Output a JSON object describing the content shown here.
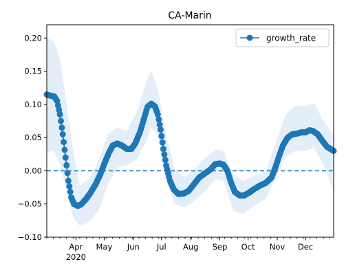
{
  "chart_data": {
    "type": "line",
    "title": "CA-Marin",
    "xlabel": "",
    "ylabel": "",
    "x_start": "2020-03-01",
    "x_end": "2020-12-31",
    "ylim": [
      -0.1,
      0.22
    ],
    "yticks": [
      -0.1,
      -0.05,
      0.0,
      0.05,
      0.1,
      0.15,
      0.2
    ],
    "ytick_labels": [
      "−0.10",
      "−0.05",
      "0.00",
      "0.05",
      "0.10",
      "0.15",
      "0.20"
    ],
    "xticks": [
      {
        "date": "2020-04-01",
        "label": "Apr",
        "sublabel": "2020"
      },
      {
        "date": "2020-05-01",
        "label": "May",
        "sublabel": ""
      },
      {
        "date": "2020-06-01",
        "label": "Jun",
        "sublabel": ""
      },
      {
        "date": "2020-07-01",
        "label": "Jul",
        "sublabel": ""
      },
      {
        "date": "2020-08-01",
        "label": "Aug",
        "sublabel": ""
      },
      {
        "date": "2020-09-01",
        "label": "Sep",
        "sublabel": ""
      },
      {
        "date": "2020-10-01",
        "label": "Oct",
        "sublabel": ""
      },
      {
        "date": "2020-11-01",
        "label": "Nov",
        "sublabel": ""
      },
      {
        "date": "2020-12-01",
        "label": "Dec",
        "sublabel": ""
      }
    ],
    "legend": {
      "position": "top-right",
      "entries": [
        "growth_rate"
      ]
    },
    "grid": false,
    "reference_line": {
      "y": 0.0,
      "style": "dashed"
    },
    "colors": {
      "series": "#1f77b4",
      "band": "#dae8f5"
    },
    "series": [
      {
        "name": "growth_rate",
        "points": [
          [
            "2020-03-01",
            0.115
          ],
          [
            "2020-03-05",
            0.113
          ],
          [
            "2020-03-09",
            0.112
          ],
          [
            "2020-03-12",
            0.105
          ],
          [
            "2020-03-15",
            0.085
          ],
          [
            "2020-03-18",
            0.055
          ],
          [
            "2020-03-21",
            0.02
          ],
          [
            "2020-03-24",
            -0.015
          ],
          [
            "2020-03-27",
            -0.04
          ],
          [
            "2020-03-30",
            -0.05
          ],
          [
            "2020-04-03",
            -0.053
          ],
          [
            "2020-04-07",
            -0.05
          ],
          [
            "2020-04-12",
            -0.042
          ],
          [
            "2020-04-17",
            -0.032
          ],
          [
            "2020-04-22",
            -0.02
          ],
          [
            "2020-04-27",
            -0.005
          ],
          [
            "2020-05-01",
            0.01
          ],
          [
            "2020-05-06",
            0.027
          ],
          [
            "2020-05-10",
            0.038
          ],
          [
            "2020-05-15",
            0.041
          ],
          [
            "2020-05-20",
            0.038
          ],
          [
            "2020-05-25",
            0.033
          ],
          [
            "2020-05-30",
            0.033
          ],
          [
            "2020-06-03",
            0.041
          ],
          [
            "2020-06-08",
            0.058
          ],
          [
            "2020-06-12",
            0.077
          ],
          [
            "2020-06-16",
            0.096
          ],
          [
            "2020-06-20",
            0.101
          ],
          [
            "2020-06-24",
            0.097
          ],
          [
            "2020-06-27",
            0.085
          ],
          [
            "2020-06-30",
            0.062
          ],
          [
            "2020-07-03",
            0.033
          ],
          [
            "2020-07-06",
            0.008
          ],
          [
            "2020-07-10",
            -0.015
          ],
          [
            "2020-07-14",
            -0.028
          ],
          [
            "2020-07-19",
            -0.035
          ],
          [
            "2020-07-25",
            -0.034
          ],
          [
            "2020-07-30",
            -0.03
          ],
          [
            "2020-08-04",
            -0.021
          ],
          [
            "2020-08-10",
            -0.01
          ],
          [
            "2020-08-16",
            -0.004
          ],
          [
            "2020-08-22",
            0.002
          ],
          [
            "2020-08-27",
            0.01
          ],
          [
            "2020-09-01",
            0.011
          ],
          [
            "2020-09-05",
            0.009
          ],
          [
            "2020-09-09",
            0.0
          ],
          [
            "2020-09-13",
            -0.018
          ],
          [
            "2020-09-17",
            -0.032
          ],
          [
            "2020-09-22",
            -0.037
          ],
          [
            "2020-09-27",
            -0.037
          ],
          [
            "2020-10-02",
            -0.033
          ],
          [
            "2020-10-08",
            -0.027
          ],
          [
            "2020-10-14",
            -0.022
          ],
          [
            "2020-10-20",
            -0.018
          ],
          [
            "2020-10-26",
            -0.01
          ],
          [
            "2020-10-30",
            0.005
          ],
          [
            "2020-11-03",
            0.022
          ],
          [
            "2020-11-07",
            0.038
          ],
          [
            "2020-11-12",
            0.05
          ],
          [
            "2020-11-17",
            0.055
          ],
          [
            "2020-11-22",
            0.056
          ],
          [
            "2020-11-27",
            0.058
          ],
          [
            "2020-12-01",
            0.058
          ],
          [
            "2020-12-05",
            0.061
          ],
          [
            "2020-12-09",
            0.06
          ],
          [
            "2020-12-14",
            0.055
          ],
          [
            "2020-12-19",
            0.045
          ],
          [
            "2020-12-24",
            0.036
          ],
          [
            "2020-12-31",
            0.03
          ]
        ],
        "band": [
          [
            "2020-03-01",
            0.028,
            0.2
          ],
          [
            "2020-03-08",
            0.03,
            0.195
          ],
          [
            "2020-03-15",
            0.01,
            0.17
          ],
          [
            "2020-03-22",
            -0.03,
            0.1
          ],
          [
            "2020-03-29",
            -0.07,
            0.03
          ],
          [
            "2020-04-05",
            -0.083,
            -0.022
          ],
          [
            "2020-04-15",
            -0.077,
            -0.012
          ],
          [
            "2020-04-25",
            -0.06,
            0.015
          ],
          [
            "2020-05-05",
            -0.02,
            0.055
          ],
          [
            "2020-05-15",
            0.005,
            0.065
          ],
          [
            "2020-05-25",
            0.008,
            0.06
          ],
          [
            "2020-06-05",
            0.018,
            0.09
          ],
          [
            "2020-06-15",
            0.045,
            0.135
          ],
          [
            "2020-06-20",
            0.065,
            0.15
          ],
          [
            "2020-06-27",
            0.055,
            0.125
          ],
          [
            "2020-07-05",
            -0.01,
            0.06
          ],
          [
            "2020-07-15",
            -0.05,
            0.003
          ],
          [
            "2020-07-25",
            -0.055,
            -0.01
          ],
          [
            "2020-08-05",
            -0.045,
            0.002
          ],
          [
            "2020-08-15",
            -0.032,
            0.018
          ],
          [
            "2020-08-28",
            -0.012,
            0.032
          ],
          [
            "2020-09-05",
            -0.015,
            0.03
          ],
          [
            "2020-09-15",
            -0.06,
            -0.005
          ],
          [
            "2020-09-25",
            -0.065,
            -0.015
          ],
          [
            "2020-10-08",
            -0.052,
            -0.008
          ],
          [
            "2020-10-20",
            -0.042,
            0.0
          ],
          [
            "2020-10-30",
            -0.012,
            0.04
          ],
          [
            "2020-11-10",
            0.02,
            0.085
          ],
          [
            "2020-11-20",
            0.03,
            0.098
          ],
          [
            "2020-12-01",
            0.03,
            0.098
          ],
          [
            "2020-12-10",
            0.035,
            0.102
          ],
          [
            "2020-12-20",
            0.01,
            0.075
          ],
          [
            "2020-12-31",
            -0.03,
            0.055
          ]
        ]
      }
    ]
  }
}
